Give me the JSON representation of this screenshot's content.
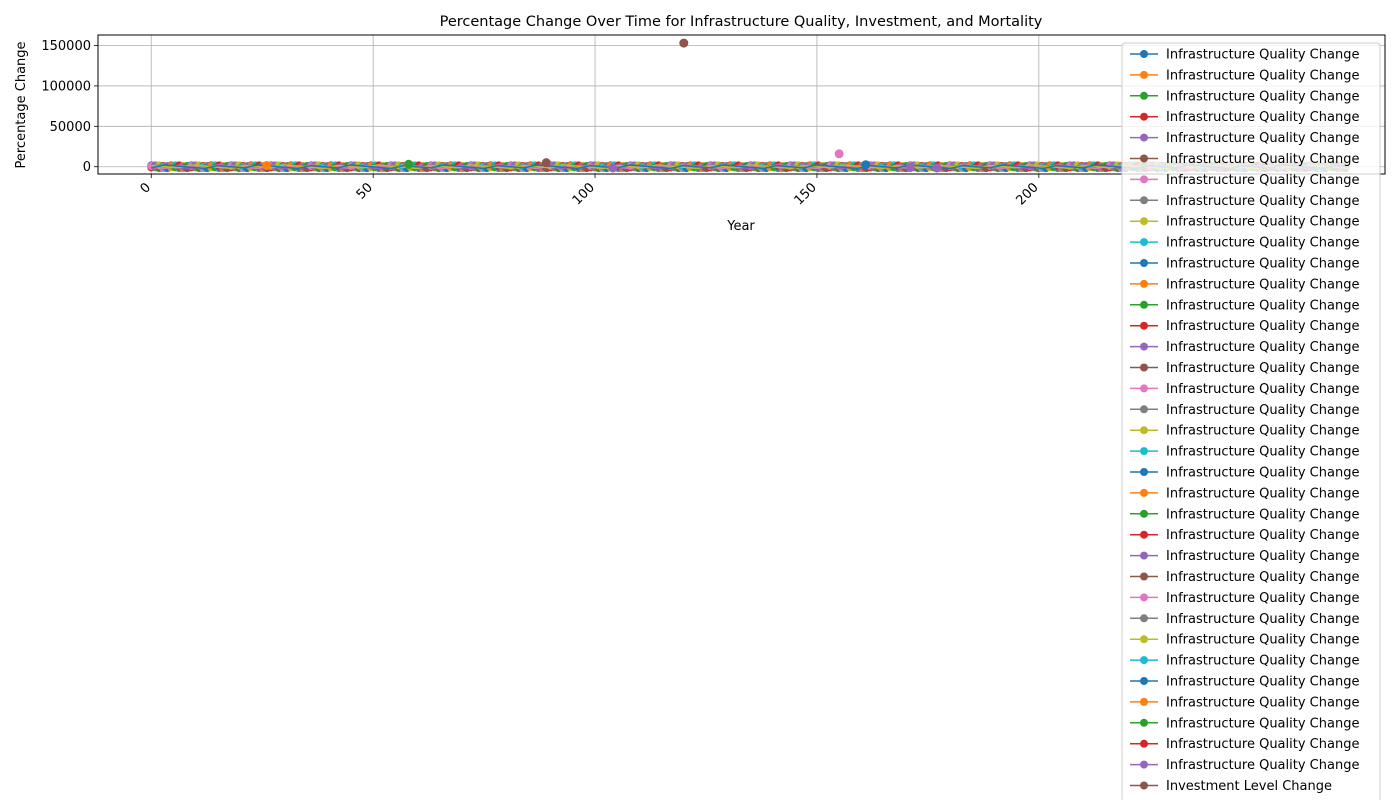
{
  "chart_data": {
    "type": "line",
    "title": "Percentage Change Over Time for Infrastructure Quality, Investment, and Mortality",
    "xlabel": "Year",
    "ylabel": "Percentage Change",
    "xlim": [
      -12,
      278
    ],
    "ylim": [
      -9000,
      163000
    ],
    "x_ticks": [
      0,
      50,
      100,
      150,
      200
    ],
    "x_tick_labels": [
      "0",
      "50",
      "100",
      "150",
      "200"
    ],
    "y_ticks": [
      0,
      50000,
      100000,
      150000
    ],
    "y_tick_labels": [
      "0",
      "50000",
      "100000",
      "150000"
    ],
    "x_tick_rotation": 45,
    "grid": true,
    "legend_position": "top-right",
    "x_range": [
      0,
      270
    ],
    "palette": [
      "#1f77b4",
      "#ff7f0e",
      "#2ca02c",
      "#d62728",
      "#9467bd",
      "#8c564b",
      "#e377c2",
      "#7f7f7f",
      "#bcbd22",
      "#17becf"
    ],
    "legend_entries": [
      "Infrastructure Quality Change",
      "Infrastructure Quality Change",
      "Infrastructure Quality Change",
      "Infrastructure Quality Change",
      "Infrastructure Quality Change",
      "Infrastructure Quality Change",
      "Infrastructure Quality Change",
      "Infrastructure Quality Change",
      "Infrastructure Quality Change",
      "Infrastructure Quality Change",
      "Infrastructure Quality Change",
      "Infrastructure Quality Change",
      "Infrastructure Quality Change",
      "Infrastructure Quality Change",
      "Infrastructure Quality Change",
      "Infrastructure Quality Change",
      "Infrastructure Quality Change",
      "Infrastructure Quality Change",
      "Infrastructure Quality Change",
      "Infrastructure Quality Change",
      "Infrastructure Quality Change",
      "Infrastructure Quality Change",
      "Infrastructure Quality Change",
      "Infrastructure Quality Change",
      "Infrastructure Quality Change",
      "Infrastructure Quality Change",
      "Infrastructure Quality Change",
      "Infrastructure Quality Change",
      "Infrastructure Quality Change",
      "Infrastructure Quality Change",
      "Infrastructure Quality Change",
      "Infrastructure Quality Change",
      "Infrastructure Quality Change",
      "Infrastructure Quality Change",
      "Infrastructure Quality Change",
      "Investment Level Change"
    ],
    "baseline_value": 0,
    "baseline_span": [
      0,
      270
    ],
    "highlighted_points": [
      {
        "x": 120,
        "y": 153000,
        "color": "#8c564b"
      },
      {
        "x": 155,
        "y": 16000,
        "color": "#e377c2"
      },
      {
        "x": 89,
        "y": 5000,
        "color": "#8c564b"
      },
      {
        "x": 58,
        "y": 3000,
        "color": "#2ca02c"
      },
      {
        "x": 161,
        "y": 2500,
        "color": "#1f77b4"
      },
      {
        "x": 26,
        "y": 1500,
        "color": "#ff7f0e"
      },
      {
        "x": 104,
        "y": -1500,
        "color": "#9467bd"
      },
      {
        "x": 177,
        "y": -1500,
        "color": "#9467bd"
      },
      {
        "x": 171,
        "y": -1000,
        "color": "#9467bd"
      }
    ]
  }
}
